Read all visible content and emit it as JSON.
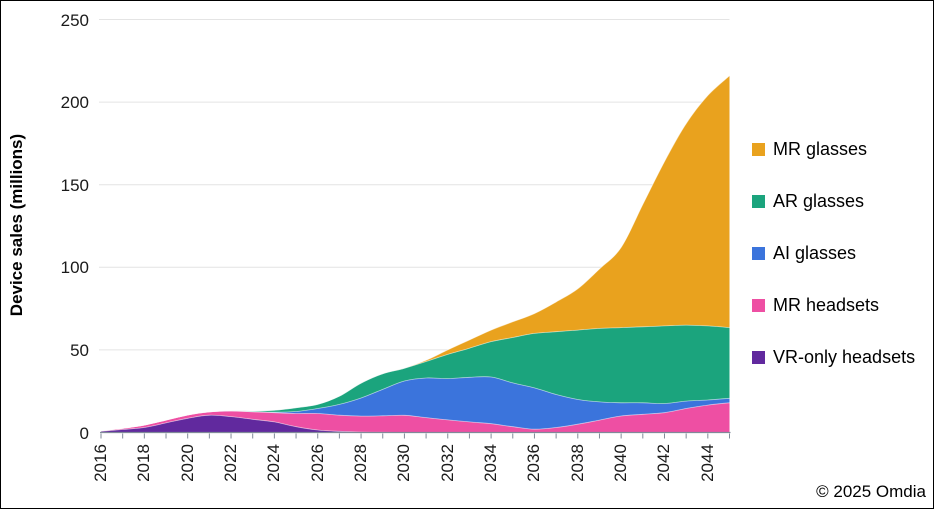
{
  "page": {
    "copyright": "© 2025 Omdia"
  },
  "axes": {
    "y": {
      "title": "Device sales (millions)",
      "ticks": [
        0,
        50,
        100,
        150,
        200,
        250
      ],
      "max": 250
    },
    "x": {
      "start_year": 2016,
      "end_year": 2045,
      "labeled_years": [
        2016,
        2018,
        2020,
        2022,
        2024,
        2026,
        2028,
        2030,
        2032,
        2034,
        2036,
        2038,
        2040,
        2042,
        2044
      ]
    }
  },
  "colors": {
    "grid": "#E4E4E4",
    "axis": "#808A99",
    "mr_glasses": "#E9A21E",
    "ar_glasses": "#1BA47D",
    "ai_glasses": "#3B74DC",
    "mr_headsets": "#EE4FA3",
    "vr_only_headsets": "#61299E"
  },
  "chart_data": {
    "type": "area",
    "stacked": true,
    "title": "",
    "xlabel": "",
    "ylabel": "Device sales (millions)",
    "ylim": [
      0,
      250
    ],
    "grid": "horizontal",
    "legend_position": "right",
    "legend_order_top_to_bottom": [
      "MR glasses",
      "AR glasses",
      "AI glasses",
      "MR headsets",
      "VR-only headsets"
    ],
    "x": [
      2016,
      2017,
      2018,
      2019,
      2020,
      2021,
      2022,
      2023,
      2024,
      2025,
      2026,
      2027,
      2028,
      2029,
      2030,
      2031,
      2032,
      2033,
      2034,
      2035,
      2036,
      2037,
      2038,
      2039,
      2040,
      2041,
      2042,
      2043,
      2044,
      2045
    ],
    "series": [
      {
        "name": "VR-only headsets",
        "color": "#61299E",
        "values": [
          0.7,
          1.8,
          3,
          5.8,
          8.6,
          10.5,
          9.6,
          8,
          6.4,
          3.5,
          1.5,
          0.7,
          0.3,
          0.1,
          0,
          0,
          0,
          0,
          0,
          0,
          0,
          0,
          0,
          0,
          0,
          0,
          0,
          0,
          0,
          0
        ]
      },
      {
        "name": "MR headsets",
        "color": "#EE4FA3",
        "values": [
          0.3,
          0.7,
          1.5,
          1.7,
          2,
          2,
          3.4,
          4.5,
          5.6,
          8,
          10,
          9.8,
          9.6,
          10,
          10.4,
          9,
          7.6,
          6.4,
          5.3,
          3.5,
          2,
          3,
          5,
          7.5,
          10,
          11,
          12,
          14.5,
          16.6,
          18
        ]
      },
      {
        "name": "AI glasses",
        "color": "#3B74DC",
        "values": [
          0,
          0,
          0,
          0,
          0,
          0,
          0,
          0.1,
          0.3,
          1.2,
          3,
          6.5,
          11,
          16,
          20.8,
          24,
          25,
          27,
          28.3,
          26.5,
          25,
          20,
          15,
          11,
          8,
          7,
          5.5,
          4.5,
          3.1,
          2.7
        ]
      },
      {
        "name": "AR glasses",
        "color": "#1BA47D",
        "values": [
          0,
          0,
          0,
          0,
          0,
          0,
          0.2,
          0.4,
          1.2,
          2.3,
          2.5,
          5,
          9,
          9.5,
          7.7,
          10,
          14.7,
          17.6,
          21.4,
          27.5,
          33,
          38,
          42,
          44.5,
          45.5,
          46,
          47,
          46,
          44.8,
          42.8
        ]
      },
      {
        "name": "MR glasses",
        "color": "#E9A21E",
        "values": [
          0,
          0,
          0,
          0,
          0,
          0,
          0,
          0,
          0,
          0,
          0,
          0,
          0,
          0,
          0,
          0.7,
          2.7,
          5,
          7,
          9.5,
          12,
          18,
          25,
          36,
          48.5,
          74,
          99.5,
          122,
          139.5,
          152.5
        ]
      }
    ]
  }
}
